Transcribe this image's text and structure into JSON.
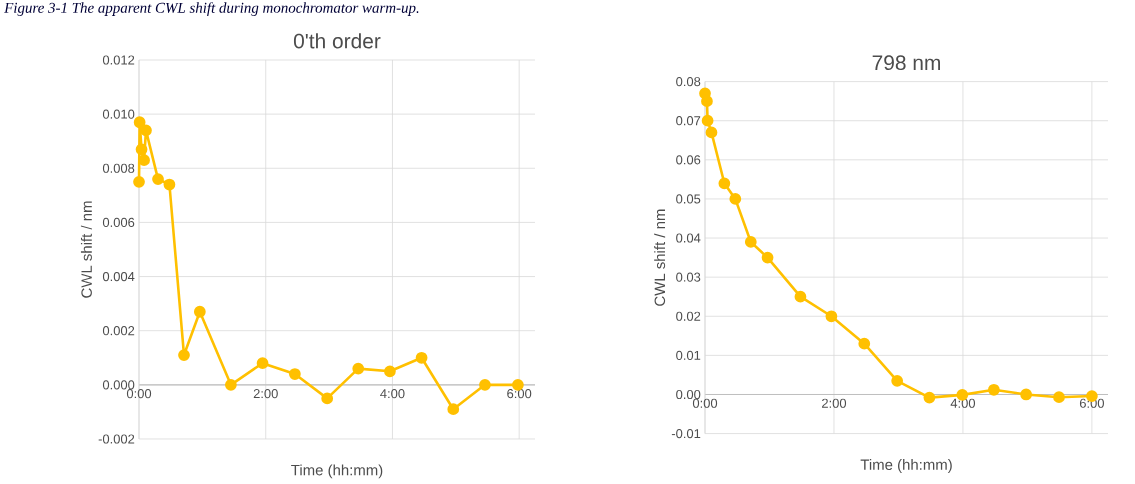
{
  "chart_data": [
    {
      "type": "line",
      "title": "0'th order",
      "xlabel": "Time (hh:mm)",
      "ylabel": "CWL shift / nm",
      "annotations": [
        "Figure 3-1 The apparent CWL shift during monochromator warm-up."
      ],
      "x": [
        0,
        0.01,
        0.04,
        0.08,
        0.11,
        0.3,
        0.48,
        0.71,
        0.96,
        1.45,
        1.95,
        2.46,
        2.97,
        3.46,
        3.96,
        4.46,
        4.96,
        5.46,
        5.98
      ],
      "series": [
        {
          "color": "#ffc000",
          "values": [
            0.0075,
            0.0097,
            0.0087,
            0.0083,
            0.0094,
            0.0076,
            0.0074,
            0.0011,
            0.0027,
            0.0,
            0.0008,
            0.0004,
            -0.0005,
            0.0006,
            0.0005,
            0.001,
            -0.0009,
            0.0,
            0.0
          ]
        }
      ],
      "xlim": [
        0,
        6.25
      ],
      "ylim": [
        -0.002,
        0.012
      ],
      "xticks": [
        {
          "value": 0,
          "label": "0:00"
        },
        {
          "value": 2,
          "label": "2:00"
        },
        {
          "value": 4,
          "label": "4:00"
        },
        {
          "value": 6,
          "label": "6:00"
        }
      ],
      "yticks": [
        {
          "value": -0.002,
          "label": "-0.002"
        },
        {
          "value": 0,
          "label": "0.000"
        },
        {
          "value": 0.002,
          "label": "0.002"
        },
        {
          "value": 0.004,
          "label": "0.004"
        },
        {
          "value": 0.006,
          "label": "0.006"
        },
        {
          "value": 0.008,
          "label": "0.008"
        },
        {
          "value": 0.01,
          "label": "0.010"
        },
        {
          "value": 0.012,
          "label": "0.012"
        }
      ],
      "grid": true,
      "marker": "circle",
      "line_style": "solid"
    },
    {
      "type": "line",
      "title": "798 nm",
      "xlabel": "Time (hh:mm)",
      "ylabel": "CWL shift / nm",
      "x": [
        0,
        0.03,
        0.04,
        0.1,
        0.3,
        0.47,
        0.71,
        0.97,
        1.48,
        1.96,
        2.47,
        2.98,
        3.48,
        3.99,
        4.48,
        4.98,
        5.49,
        6.0
      ],
      "series": [
        {
          "color": "#ffc000",
          "values": [
            0.077,
            0.075,
            0.07,
            0.067,
            0.054,
            0.05,
            0.039,
            0.035,
            0.025,
            0.02,
            0.013,
            0.0035,
            -0.0008,
            -0.0001,
            0.0012,
            0.0,
            -0.0007,
            -0.0004
          ]
        }
      ],
      "xlim": [
        0,
        6.25
      ],
      "ylim": [
        -0.01,
        0.08
      ],
      "xticks": [
        {
          "value": 0,
          "label": "0:00"
        },
        {
          "value": 2,
          "label": "2:00"
        },
        {
          "value": 4,
          "label": "4:00"
        },
        {
          "value": 6,
          "label": "6:00"
        }
      ],
      "yticks": [
        {
          "value": -0.01,
          "label": "-0.01"
        },
        {
          "value": 0,
          "label": "0.00"
        },
        {
          "value": 0.01,
          "label": "0.01"
        },
        {
          "value": 0.02,
          "label": "0.02"
        },
        {
          "value": 0.03,
          "label": "0.03"
        },
        {
          "value": 0.04,
          "label": "0.04"
        },
        {
          "value": 0.05,
          "label": "0.05"
        },
        {
          "value": 0.06,
          "label": "0.06"
        },
        {
          "value": 0.07,
          "label": "0.07"
        },
        {
          "value": 0.08,
          "label": "0.08"
        }
      ],
      "grid": true,
      "marker": "circle",
      "line_style": "solid"
    }
  ]
}
